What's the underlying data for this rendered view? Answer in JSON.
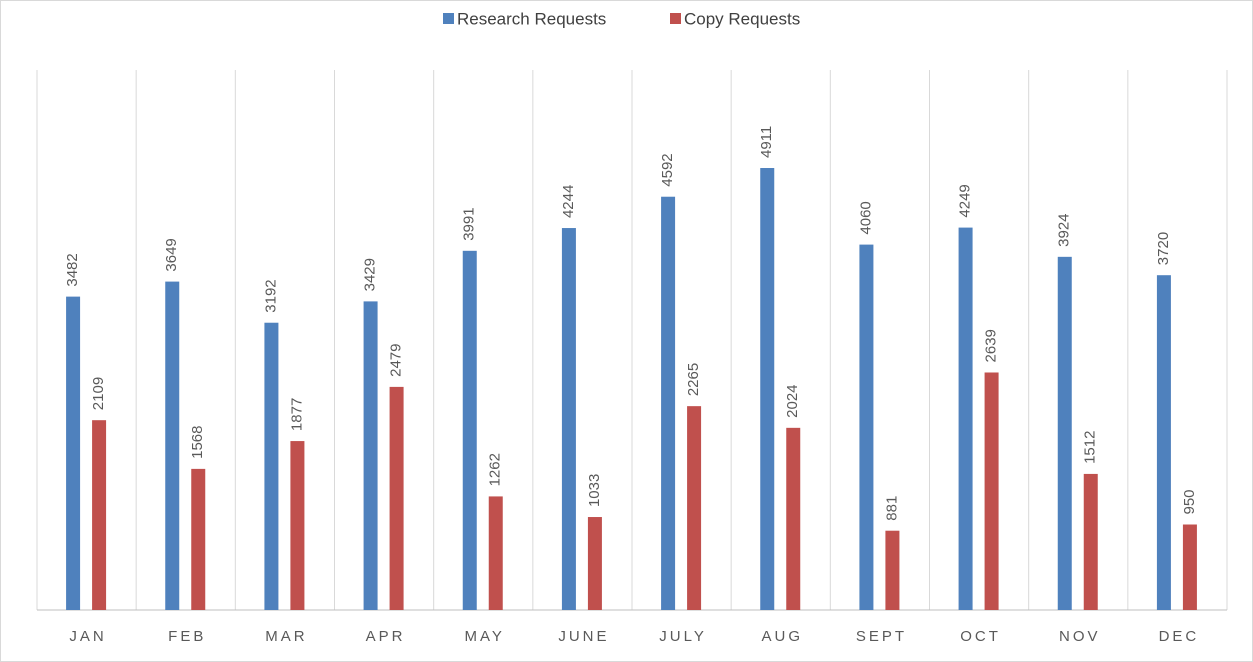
{
  "chart_data": {
    "type": "bar",
    "categories": [
      "JAN",
      "FEB",
      "MAR",
      "APR",
      "MAY",
      "JUNE",
      "JULY",
      "AUG",
      "SEPT",
      "OCT",
      "NOV",
      "DEC"
    ],
    "series": [
      {
        "name": "Research Requests",
        "color": "#4f81bd",
        "values": [
          3482,
          3649,
          3192,
          3429,
          3991,
          4244,
          4592,
          4911,
          4060,
          4249,
          3924,
          3720
        ]
      },
      {
        "name": "Copy Requests",
        "color": "#c0504d",
        "values": [
          2109,
          1568,
          1877,
          2479,
          1262,
          1033,
          2265,
          2024,
          881,
          2639,
          1512,
          950
        ]
      }
    ],
    "ylim": [
      0,
      6000
    ],
    "legend": "top"
  }
}
